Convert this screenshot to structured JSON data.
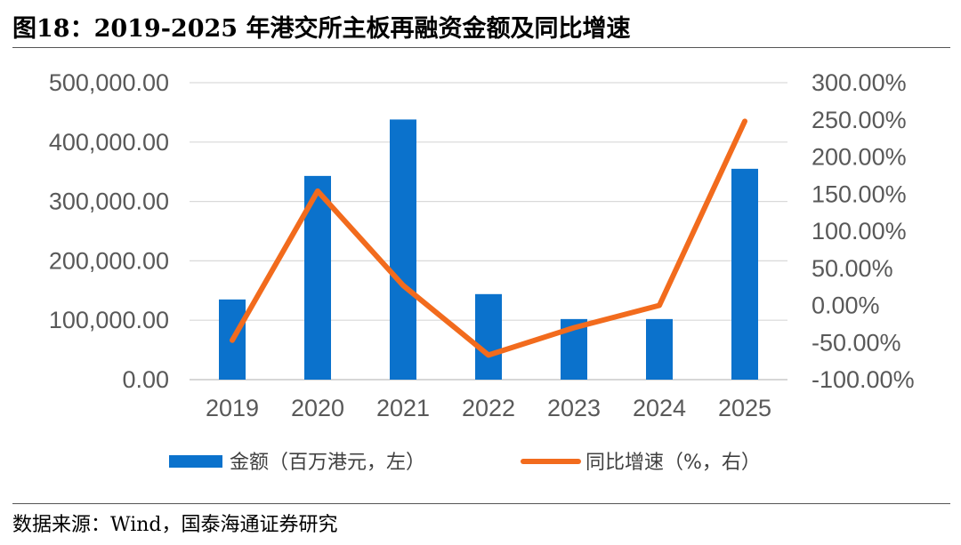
{
  "figure": {
    "title": "图18：2019-2025 年港交所主板再融资金额及同比增速",
    "source": "数据来源：Wind，国泰海通证券研究"
  },
  "colors": {
    "bar": "#0B72CC",
    "line": "#F26B1D",
    "tick": "#595959"
  },
  "chart_data": {
    "type": "bar+line",
    "categories": [
      "2019",
      "2020",
      "2021",
      "2022",
      "2023",
      "2024",
      "2025"
    ],
    "series": [
      {
        "name": "金额（百万港元，左）",
        "type": "bar",
        "axis": "left",
        "values": [
          135000,
          343000,
          438000,
          144000,
          102000,
          102000,
          355000
        ]
      },
      {
        "name": "同比增速（%，右）",
        "type": "line",
        "axis": "right",
        "values": [
          -47,
          154,
          27,
          -67,
          -30,
          0,
          248
        ]
      }
    ],
    "y_left": {
      "ylim": [
        0,
        500000
      ],
      "ticks": [
        "0.00",
        "100,000.00",
        "200,000.00",
        "300,000.00",
        "400,000.00",
        "500,000.00"
      ]
    },
    "y_right": {
      "ylim": [
        -100,
        300
      ],
      "ticks": [
        "-100.00%",
        "-50.00%",
        "0.00%",
        "50.00%",
        "100.00%",
        "150.00%",
        "200.00%",
        "250.00%",
        "300.00%"
      ]
    },
    "grid": true,
    "legend": "bottom"
  }
}
